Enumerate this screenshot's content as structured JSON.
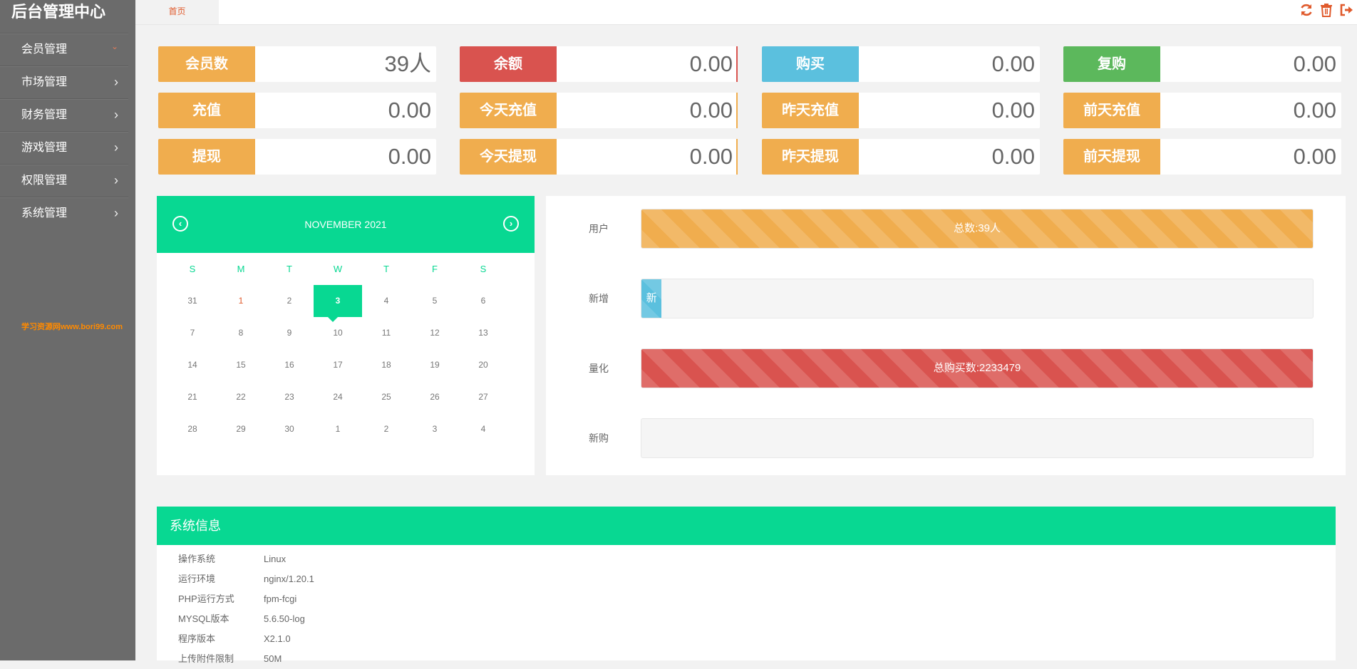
{
  "brand": "后台管理中心",
  "watermark": "学习资源网www.bori99.com",
  "sidebar": {
    "items": [
      {
        "label": "会员管理",
        "expanded": true
      },
      {
        "label": "市场管理",
        "expanded": false
      },
      {
        "label": "财务管理",
        "expanded": false
      },
      {
        "label": "游戏管理",
        "expanded": false
      },
      {
        "label": "权限管理",
        "expanded": false
      },
      {
        "label": "系统管理",
        "expanded": false
      }
    ]
  },
  "topbar": {
    "home_tab": "首页",
    "actions": [
      "refresh-icon",
      "trash-icon",
      "logout-icon"
    ]
  },
  "colors": {
    "orange": "#f0ad4e",
    "red": "#d9534f",
    "blue": "#5bc0de",
    "green": "#5cb85c",
    "teal": "#08d892"
  },
  "stats": [
    {
      "label": "会员数",
      "value": "39人",
      "color": "#f0ad4e"
    },
    {
      "label": "余额",
      "value": "0.00",
      "color": "#d9534f"
    },
    {
      "label": "购买",
      "value": "0.00",
      "color": "#5bc0de"
    },
    {
      "label": "复购",
      "value": "0.00",
      "color": "#5cb85c"
    },
    {
      "label": "充值",
      "value": "0.00",
      "color": "#f0ad4e"
    },
    {
      "label": "今天充值",
      "value": "0.00",
      "color": "#f0ad4e"
    },
    {
      "label": "昨天充值",
      "value": "0.00",
      "color": "#f0ad4e"
    },
    {
      "label": "前天充值",
      "value": "0.00",
      "color": "#f0ad4e"
    },
    {
      "label": "提现",
      "value": "0.00",
      "color": "#f0ad4e"
    },
    {
      "label": "今天提现",
      "value": "0.00",
      "color": "#f0ad4e"
    },
    {
      "label": "昨天提现",
      "value": "0.00",
      "color": "#f0ad4e"
    },
    {
      "label": "前天提现",
      "value": "0.00",
      "color": "#f0ad4e"
    }
  ],
  "calendar": {
    "month_title": "NOVEMBER 2021",
    "prev_icon": "circle-arrow-left-icon",
    "next_icon": "circle-arrow-right-icon",
    "weekdays": [
      "S",
      "M",
      "T",
      "W",
      "T",
      "F",
      "S"
    ],
    "selected_day": "3",
    "weeks": [
      [
        "31",
        "1",
        "2",
        "3",
        "4",
        "5",
        "6"
      ],
      [
        "7",
        "8",
        "9",
        "10",
        "11",
        "12",
        "13"
      ],
      [
        "14",
        "15",
        "16",
        "17",
        "18",
        "19",
        "20"
      ],
      [
        "21",
        "22",
        "23",
        "24",
        "25",
        "26",
        "27"
      ],
      [
        "28",
        "29",
        "30",
        "1",
        "2",
        "3",
        "4"
      ]
    ]
  },
  "progress": [
    {
      "label": "用户",
      "text": "总数:39人",
      "fraction": 1.0,
      "color": "#f0ad4e"
    },
    {
      "label": "新增",
      "text": "新",
      "fraction": 0.03,
      "color": "#5bc0de"
    },
    {
      "label": "量化",
      "text": "总购买数:2233479",
      "fraction": 1.0,
      "color": "#d9534f"
    },
    {
      "label": "新购",
      "text": "",
      "fraction": 0.0,
      "color": "#cccccc"
    }
  ],
  "sysinfo": {
    "title": "系统信息",
    "rows": [
      {
        "k": "操作系统",
        "v": "Linux"
      },
      {
        "k": "运行环境",
        "v": "nginx/1.20.1"
      },
      {
        "k": "PHP运行方式",
        "v": "fpm-fcgi"
      },
      {
        "k": "MYSQL版本",
        "v": "5.6.50-log"
      },
      {
        "k": "程序版本",
        "v": "X2.1.0"
      },
      {
        "k": "上传附件限制",
        "v": "50M"
      }
    ]
  }
}
